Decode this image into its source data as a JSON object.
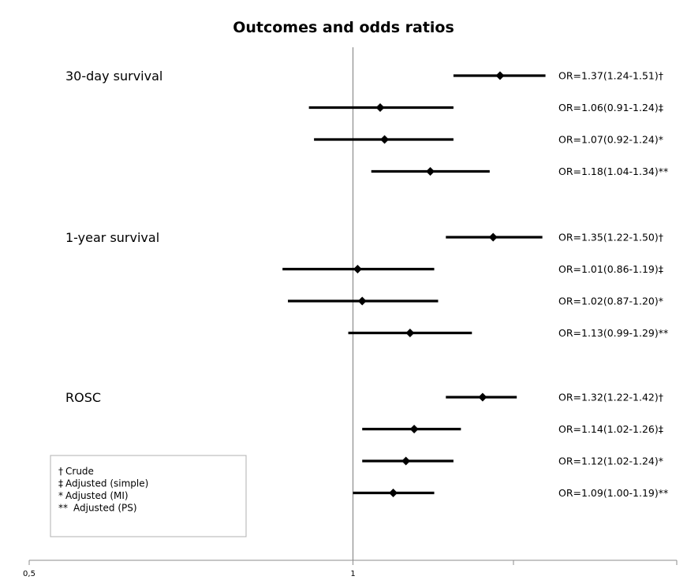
{
  "chart_data": {
    "type": "forest",
    "title": "Outcomes and odds ratios",
    "x_scale": "log",
    "xlim": [
      0.5,
      2.0
    ],
    "x_ticks": [
      {
        "value": 0.5,
        "label": "0,5"
      },
      {
        "value": 1,
        "label": "1"
      }
    ],
    "minor_tick_values": [
      1.41,
      2.0
    ],
    "reference_line": 1,
    "groups": [
      {
        "label": "30-day survival",
        "rows": [
          {
            "estimate": 1.37,
            "lower": 1.24,
            "upper": 1.51,
            "text": "OR=1.37(1.24-1.51)†"
          },
          {
            "estimate": 1.06,
            "lower": 0.91,
            "upper": 1.24,
            "text": "OR=1.06(0.91-1.24)‡"
          },
          {
            "estimate": 1.07,
            "lower": 0.92,
            "upper": 1.24,
            "text": "OR=1.07(0.92-1.24)*"
          },
          {
            "estimate": 1.18,
            "lower": 1.04,
            "upper": 1.34,
            "text": "OR=1.18(1.04-1.34)**"
          }
        ]
      },
      {
        "label": "1-year survival",
        "rows": [
          {
            "estimate": 1.35,
            "lower": 1.22,
            "upper": 1.5,
            "text": "OR=1.35(1.22-1.50)†"
          },
          {
            "estimate": 1.01,
            "lower": 0.86,
            "upper": 1.19,
            "text": "OR=1.01(0.86-1.19)‡"
          },
          {
            "estimate": 1.02,
            "lower": 0.87,
            "upper": 1.2,
            "text": "OR=1.02(0.87-1.20)*"
          },
          {
            "estimate": 1.13,
            "lower": 0.99,
            "upper": 1.29,
            "text": "OR=1.13(0.99-1.29)**"
          }
        ]
      },
      {
        "label": "ROSC",
        "rows": [
          {
            "estimate": 1.32,
            "lower": 1.22,
            "upper": 1.42,
            "text": "OR=1.32(1.22-1.42)†"
          },
          {
            "estimate": 1.14,
            "lower": 1.02,
            "upper": 1.26,
            "text": "OR=1.14(1.02-1.26)‡"
          },
          {
            "estimate": 1.12,
            "lower": 1.02,
            "upper": 1.24,
            "text": "OR=1.12(1.02-1.24)*"
          },
          {
            "estimate": 1.09,
            "lower": 1.0,
            "upper": 1.19,
            "text": "OR=1.09(1.00-1.19)**"
          }
        ]
      }
    ],
    "legend": {
      "position": "bottom-left",
      "entries": [
        {
          "symbol": "†",
          "label": "Crude"
        },
        {
          "symbol": "‡",
          "label": "Adjusted (simple)"
        },
        {
          "symbol": "*",
          "label": "Adjusted (MI)"
        },
        {
          "symbol": "**",
          "label": "Adjusted (PS)"
        }
      ]
    },
    "colors": {
      "marks": "#000000",
      "reference_line": "#8c8c8c",
      "axis": "#8c8c8c",
      "legend_border": "#b0b0b0"
    }
  }
}
